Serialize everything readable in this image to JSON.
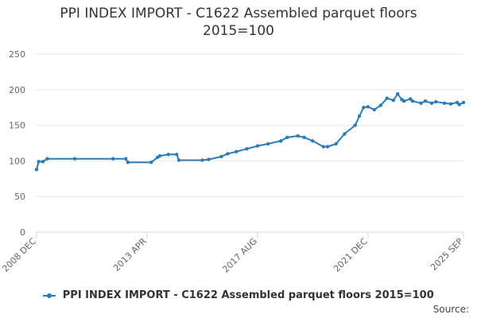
{
  "chart_data": {
    "type": "line",
    "title": "PPI INDEX IMPORT - C1622 Assembled parquet floors",
    "subtitle": "2015=100",
    "xlabel": "",
    "ylabel": "",
    "ylim": [
      0,
      250
    ],
    "y_ticks": [
      "0",
      "50",
      "100",
      "150",
      "200",
      "250"
    ],
    "x_tick_labels": [
      "2008 DEC",
      "2013 APR",
      "2017 AUG",
      "2021 DEC",
      "2025 SEP"
    ],
    "grid": true,
    "legend": "bottom",
    "colors": {
      "series": "#2b7bb9"
    },
    "series": [
      {
        "name": "PPI INDEX IMPORT - C1622 Assembled parquet floors 2015=100",
        "x": [
          "2008 DEC",
          "2009 JAN",
          "2009 MAR",
          "2009 MAY",
          "2010 JUN",
          "2011 DEC",
          "2012 JUN",
          "2012 JUL",
          "2013 JUN",
          "2013 SEP",
          "2013 OCT",
          "2014 FEB",
          "2014 JUN",
          "2014 JUL",
          "2015 JUN",
          "2015 SEP",
          "2016 MAR",
          "2016 JUN",
          "2016 OCT",
          "2017 MAR",
          "2017 AUG",
          "2018 JAN",
          "2018 JUL",
          "2018 OCT",
          "2019 MAR",
          "2019 JUN",
          "2019 OCT",
          "2020 MAR",
          "2020 MAY",
          "2020 SEP",
          "2021 JAN",
          "2021 JUN",
          "2021 AUG",
          "2021 OCT",
          "2021 DEC",
          "2022 MAR",
          "2022 JUN",
          "2022 SEP",
          "2022 DEC",
          "2023 FEB",
          "2023 APR",
          "2023 MAY",
          "2023 AUG",
          "2023 SEP",
          "2024 JAN",
          "2024 MAR",
          "2024 JUN",
          "2024 AUG",
          "2024 DEC",
          "2025 MAR",
          "2025 JUN",
          "2025 JUL",
          "2025 SEP"
        ],
        "values": [
          88,
          99,
          99,
          103,
          103,
          103,
          103,
          98,
          98,
          105,
          107,
          109,
          109,
          101,
          101,
          102,
          106,
          110,
          113,
          117,
          121,
          124,
          128,
          133,
          135,
          133,
          128,
          120,
          120,
          124,
          138,
          150,
          163,
          175,
          176,
          172,
          178,
          188,
          185,
          194,
          186,
          184,
          187,
          184,
          181,
          184,
          181,
          183,
          181,
          180,
          182,
          179,
          182
        ]
      }
    ]
  },
  "credits": "Source:"
}
